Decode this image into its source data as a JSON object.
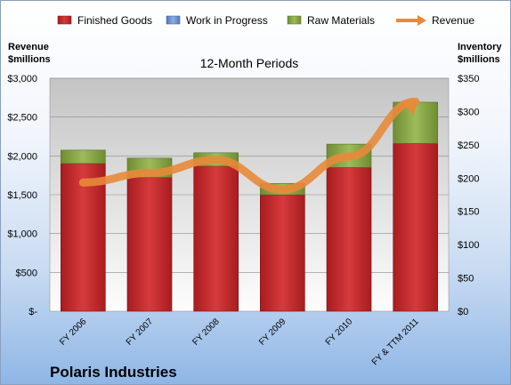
{
  "chart_data": {
    "type": "bar",
    "title": "12-Month Periods",
    "company": "Polaris Industries",
    "left_axis_title": [
      "Revenue",
      "$millions"
    ],
    "right_axis_title": [
      "Inventory",
      "$millions"
    ],
    "categories": [
      "FY 2006",
      "FY 2007",
      "FY 2008",
      "FY 2009",
      "FY 2010",
      "FY & TTM 2011"
    ],
    "left_ticks": [
      "$-",
      "$500",
      "$1,000",
      "$1,500",
      "$2,000",
      "$2,500",
      "$3,000"
    ],
    "right_ticks": [
      "$0",
      "$50",
      "$100",
      "$150",
      "$200",
      "$250",
      "$300",
      "$350"
    ],
    "left_ylim": [
      0,
      3000
    ],
    "right_ylim": [
      0,
      350
    ],
    "legend_position": "top",
    "grid": true,
    "series": [
      {
        "name": "Finished Goods",
        "axis": "right",
        "kind": "bar",
        "color": "#c0282a",
        "values": [
          222,
          201,
          218,
          175,
          216,
          252
        ]
      },
      {
        "name": "Work in Progress",
        "axis": "right",
        "kind": "bar",
        "color": "#6a8fcc",
        "values": [
          0,
          0,
          0,
          0,
          0,
          0
        ]
      },
      {
        "name": "Raw Materials",
        "axis": "right",
        "kind": "bar",
        "color": "#8aa848",
        "values": [
          20,
          29,
          20,
          17,
          35,
          62
        ]
      },
      {
        "name": "Revenue",
        "axis": "left",
        "kind": "line",
        "color": "#e8893a",
        "values": [
          1657,
          1780,
          1948,
          1566,
          1991,
          2700
        ]
      }
    ]
  }
}
